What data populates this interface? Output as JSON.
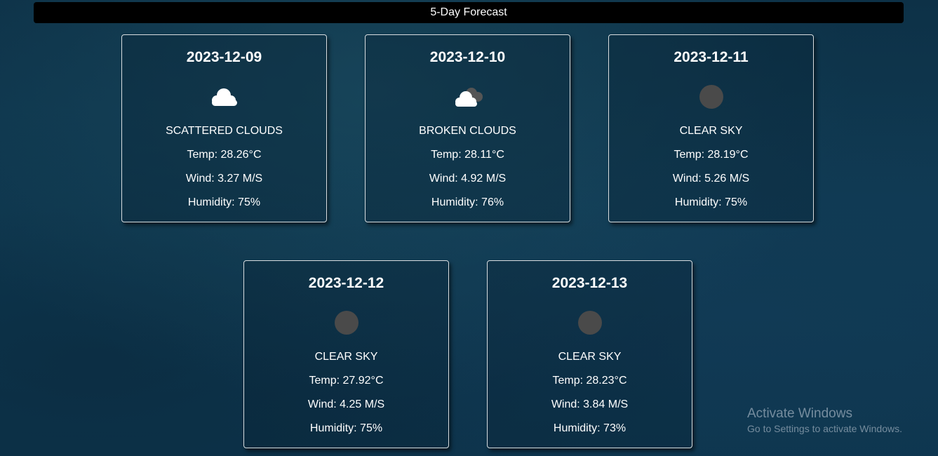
{
  "header": {
    "title": "5-Day Forecast"
  },
  "forecast": [
    {
      "date": "2023-12-09",
      "icon": "scattered-clouds-icon",
      "description": "SCATTERED CLOUDS",
      "temp": "Temp: 28.26°C",
      "wind": "Wind: 3.27 M/S",
      "humidity": "Humidity: 75%"
    },
    {
      "date": "2023-12-10",
      "icon": "broken-clouds-icon",
      "description": "BROKEN CLOUDS",
      "temp": "Temp: 28.11°C",
      "wind": "Wind: 4.92 M/S",
      "humidity": "Humidity: 76%"
    },
    {
      "date": "2023-12-11",
      "icon": "clear-sky-night-icon",
      "description": "CLEAR SKY",
      "temp": "Temp: 28.19°C",
      "wind": "Wind: 5.26 M/S",
      "humidity": "Humidity: 75%"
    },
    {
      "date": "2023-12-12",
      "icon": "clear-sky-night-icon",
      "description": "CLEAR SKY",
      "temp": "Temp: 27.92°C",
      "wind": "Wind: 4.25 M/S",
      "humidity": "Humidity: 75%"
    },
    {
      "date": "2023-12-13",
      "icon": "clear-sky-night-icon",
      "description": "CLEAR SKY",
      "temp": "Temp: 28.23°C",
      "wind": "Wind: 3.84 M/S",
      "humidity": "Humidity: 73%"
    }
  ],
  "watermark": {
    "title": "Activate Windows",
    "subtitle": "Go to Settings to activate Windows."
  },
  "colors": {
    "background": "#0f3a52",
    "header_bar": "#000000",
    "card_border": "#d8dde0",
    "text": "#ffffff",
    "moon_icon": "#4a4a4a"
  }
}
